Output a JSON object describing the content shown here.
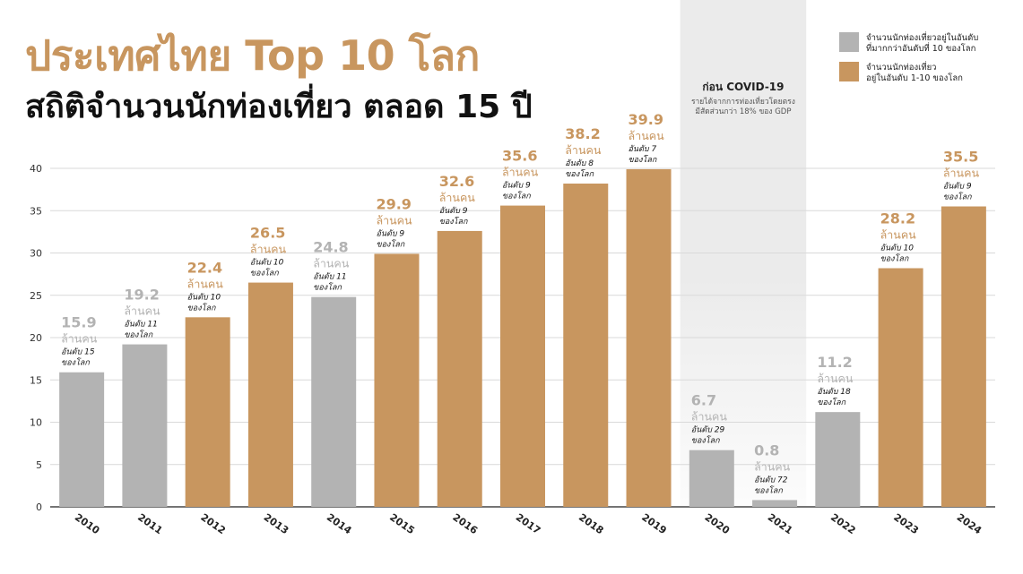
{
  "title": "ประเทศไทย Top 10 โลก",
  "subtitle": "สถิติจำนวนนักท่องเที่ยว ตลอด 15 ปี",
  "covid_box": {
    "title": "ก่อน COVID-19",
    "line1": "รายได้จากการท่องเที่ยวโดยตรง",
    "line2": "มีสัดส่วนกว่า 18% ของ GDP"
  },
  "legend": [
    {
      "key": "gray",
      "line1": "จำนวนนักท่องเที่ยวอยู่ในอันดับ",
      "line2": "ที่มากกว่าอันดับที่ 10 ของโลก"
    },
    {
      "key": "gold",
      "line1": "จำนวนนักท่องเที่ยว",
      "line2": "อยู่ในอันดับ 1-10 ของโลก"
    }
  ],
  "colors": {
    "gray": "#b3b3b3",
    "gold": "#c8965f",
    "grid": "#d9d9d9",
    "shade": "#ebebeb"
  },
  "unit_label": "ล้านคน",
  "rank_suffix": "ของโลก",
  "chart_data": {
    "type": "bar",
    "categories": [
      "2010",
      "2011",
      "2012",
      "2013",
      "2014",
      "2015",
      "2016",
      "2017",
      "2018",
      "2019",
      "2020",
      "2021",
      "2022",
      "2023",
      "2024"
    ],
    "values": [
      15.9,
      19.2,
      22.4,
      26.5,
      24.8,
      29.9,
      32.6,
      35.6,
      38.2,
      39.9,
      6.7,
      0.8,
      11.2,
      28.2,
      35.5
    ],
    "value_labels": [
      "15.9",
      "19.2",
      "22.4",
      "26.5",
      "24.8",
      "29.9",
      "32.6",
      "35.6",
      "38.2",
      "39.9",
      "6.7",
      "0.8",
      "11.2",
      "28.2",
      "35.5"
    ],
    "ranks": [
      "อันดับ 15",
      "อันดับ 11",
      "อันดับ 10",
      "อันดับ 10",
      "อันดับ 11",
      "อันดับ 9",
      "อันดับ 9",
      "อันดับ 9",
      "อันดับ 8",
      "อันดับ 7",
      "อันดับ 29",
      "อันดับ 72",
      "อันดับ 18",
      "อันดับ 10",
      "อันดับ 9"
    ],
    "bar_colors": [
      "gray",
      "gray",
      "gold",
      "gold",
      "gray",
      "gold",
      "gold",
      "gold",
      "gold",
      "gold",
      "gray",
      "gray",
      "gray",
      "gold",
      "gold"
    ],
    "yticks": [
      "0",
      "5",
      "10",
      "15",
      "20",
      "25",
      "30",
      "35",
      "40"
    ],
    "ylim": [
      0,
      40
    ],
    "shaded_categories": [
      "2020",
      "2021"
    ],
    "grid": true
  }
}
